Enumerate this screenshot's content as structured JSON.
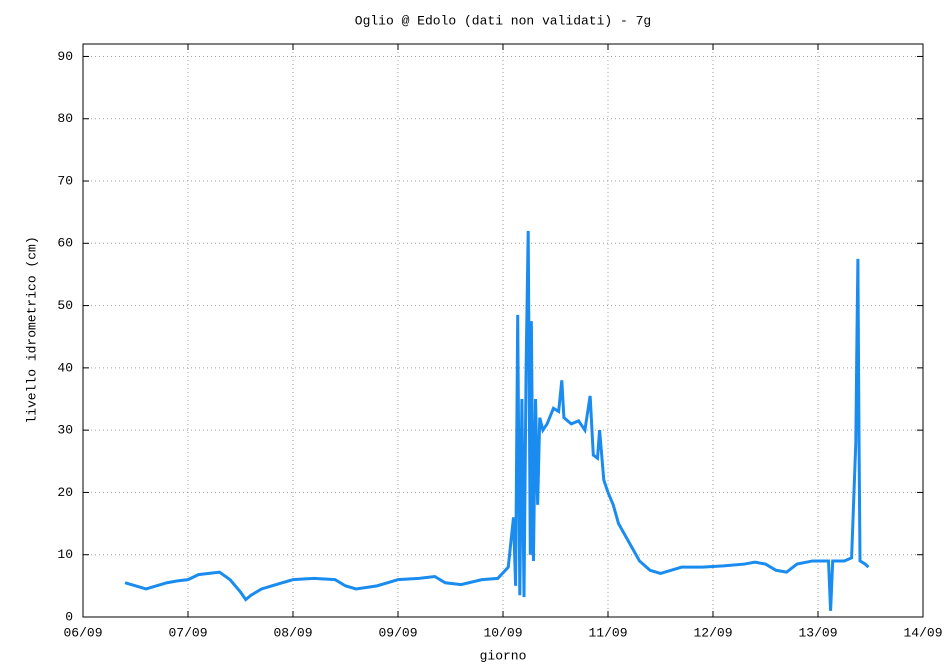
{
  "chart_data": {
    "type": "line",
    "title": "Oglio @ Edolo (dati non validati) - 7g",
    "x_label": "giorno",
    "y_label": "livello idrometrico (cm)",
    "xlim": [
      6,
      14
    ],
    "xticks": [
      {
        "value": 6,
        "label": "06/09"
      },
      {
        "value": 7,
        "label": "07/09"
      },
      {
        "value": 8,
        "label": "08/09"
      },
      {
        "value": 9,
        "label": "09/09"
      },
      {
        "value": 10,
        "label": "10/09"
      },
      {
        "value": 11,
        "label": "11/09"
      },
      {
        "value": 12,
        "label": "12/09"
      },
      {
        "value": 13,
        "label": "13/09"
      },
      {
        "value": 14,
        "label": "14/09"
      }
    ],
    "ylim": [
      0,
      92
    ],
    "yticks": [
      0,
      10,
      20,
      30,
      40,
      50,
      60,
      70,
      80,
      90
    ],
    "grid": true,
    "series": [
      {
        "color": "#1a8cf0",
        "x": [
          6.4,
          6.5,
          6.6,
          6.7,
          6.8,
          6.9,
          7.0,
          7.1,
          7.2,
          7.3,
          7.4,
          7.5,
          7.55,
          7.6,
          7.7,
          7.8,
          7.9,
          8.0,
          8.2,
          8.4,
          8.5,
          8.6,
          8.8,
          9.0,
          9.2,
          9.35,
          9.45,
          9.6,
          9.8,
          9.95,
          10.05,
          10.1,
          10.12,
          10.14,
          10.16,
          10.18,
          10.2,
          10.22,
          10.24,
          10.26,
          10.27,
          10.29,
          10.31,
          10.33,
          10.35,
          10.38,
          10.42,
          10.48,
          10.53,
          10.56,
          10.58,
          10.65,
          10.72,
          10.78,
          10.83,
          10.86,
          10.9,
          10.92,
          10.96,
          11.0,
          11.05,
          11.1,
          11.2,
          11.3,
          11.4,
          11.5,
          11.6,
          11.7,
          11.9,
          12.1,
          12.3,
          12.4,
          12.5,
          12.6,
          12.7,
          12.8,
          12.95,
          13.1,
          13.12,
          13.14,
          13.25,
          13.32,
          13.36,
          13.37,
          13.38,
          13.39,
          13.4,
          13.45,
          13.48
        ],
        "values": [
          5.5,
          5,
          4.5,
          5,
          5.5,
          5.8,
          6,
          6.8,
          7,
          7.2,
          6,
          4,
          2.8,
          3.5,
          4.5,
          5,
          5.5,
          6,
          6.2,
          6,
          5,
          4.5,
          5,
          6,
          6.2,
          6.5,
          5.5,
          5.2,
          6,
          6.2,
          8,
          16,
          5,
          48.5,
          3.5,
          35,
          3.2,
          40,
          62,
          10,
          47.5,
          9,
          35,
          18,
          32,
          30,
          31,
          33.5,
          33,
          38,
          32,
          31,
          31.5,
          30,
          35.5,
          26,
          25.5,
          30,
          22,
          20,
          18,
          15,
          12,
          9,
          7.5,
          7,
          7.5,
          8,
          8,
          8.2,
          8.5,
          8.8,
          8.5,
          7.5,
          7.2,
          8.5,
          9,
          9,
          1,
          9,
          9,
          9.5,
          28,
          43.5,
          57.5,
          30,
          9,
          8.5,
          8
        ]
      }
    ]
  }
}
